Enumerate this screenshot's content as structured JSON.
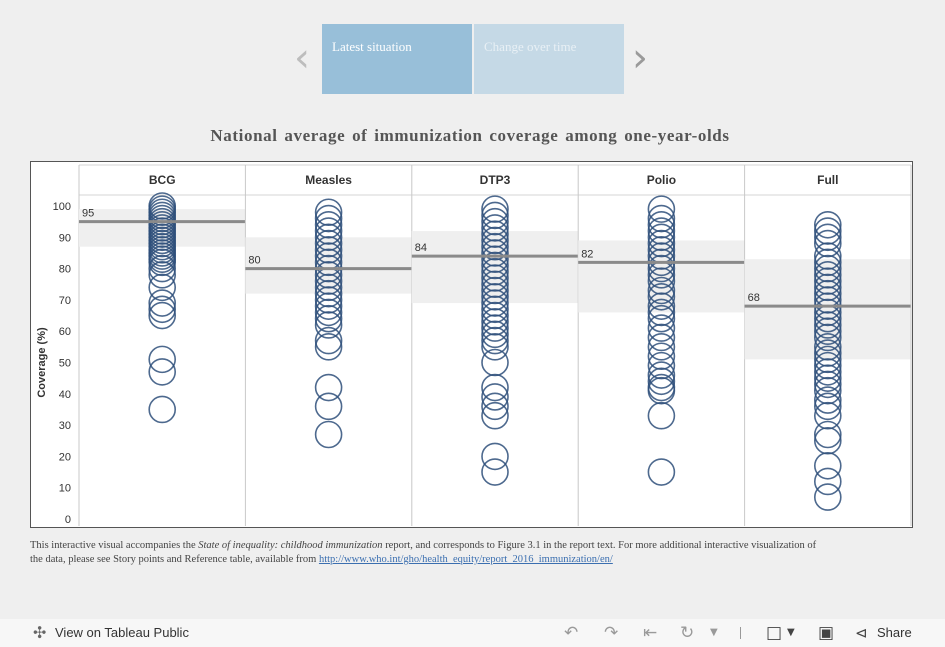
{
  "nav": {
    "prev_icon": "chevron-left-icon",
    "next_icon": "chevron-right-icon",
    "tabs": [
      {
        "label": "Latest situation",
        "active": true
      },
      {
        "label": "Change over time",
        "active": false
      }
    ]
  },
  "chart_data": {
    "type": "scatter",
    "title": "National average of immunization coverage among one-year-olds",
    "ylabel": "Coverage (%)",
    "ylim": [
      0,
      100
    ],
    "yticks": [
      0,
      10,
      20,
      30,
      40,
      50,
      60,
      70,
      80,
      90,
      100
    ],
    "grid": false,
    "mark_color": "#2e4f7a",
    "band_color": "#efefef",
    "reference_line_color": "#8a8a8a",
    "panels": [
      {
        "name": "BCG",
        "average": 95,
        "band": [
          87,
          99
        ],
        "values": [
          100,
          99,
          98,
          97,
          96,
          95,
          94,
          93,
          92,
          91,
          90,
          89,
          88,
          87,
          86,
          85,
          84,
          83,
          82,
          80,
          78,
          74,
          69,
          67,
          65,
          51,
          47,
          35
        ]
      },
      {
        "name": "Measles",
        "average": 80,
        "band": [
          72,
          90
        ],
        "values": [
          98,
          96,
          94,
          92,
          90,
          88,
          86,
          84,
          82,
          80,
          78,
          76,
          74,
          72,
          70,
          68,
          66,
          64,
          62,
          57,
          55,
          42,
          36,
          27
        ]
      },
      {
        "name": "DTP3",
        "average": 84,
        "band": [
          69,
          92
        ],
        "values": [
          99,
          97,
          95,
          93,
          91,
          89,
          87,
          85,
          83,
          81,
          79,
          77,
          75,
          73,
          71,
          69,
          67,
          65,
          63,
          61,
          59,
          57,
          55,
          50,
          42,
          39,
          36,
          33,
          20,
          15
        ]
      },
      {
        "name": "Polio",
        "average": 82,
        "band": [
          66,
          89
        ],
        "values": [
          99,
          96,
          94,
          92,
          90,
          88,
          86,
          84,
          82,
          80,
          78,
          76,
          73,
          71,
          68,
          66,
          64,
          61,
          58,
          55,
          52,
          49,
          46,
          44,
          42,
          41,
          33,
          15
        ]
      },
      {
        "name": "Full",
        "average": 68,
        "band": [
          51,
          83
        ],
        "values": [
          94,
          92,
          90,
          88,
          84,
          82,
          80,
          78,
          76,
          74,
          72,
          70,
          68,
          66,
          64,
          62,
          60,
          58,
          55,
          53,
          51,
          49,
          47,
          45,
          43,
          41,
          38,
          36,
          33,
          27,
          25,
          17,
          12,
          7
        ]
      }
    ]
  },
  "footnote": {
    "part1": "This interactive visual accompanies the ",
    "report_title": "State of inequality: childhood immunization",
    "part2": " report, and corresponds to Figure 3.1 in the report text. For more additional interactive visualization of the data, please see Story points and Reference table, available from ",
    "link": "http://www.who.int/gho/health_equity/report_2016_immunization/en/"
  },
  "toolbar": {
    "view_label": "View on Tableau Public",
    "view_icon": "tableau-logo-icon",
    "undo_icon": "undo-icon",
    "redo_icon": "redo-icon",
    "revert_icon": "revert-icon",
    "refresh_icon": "refresh-icon",
    "download_icon": "download-icon",
    "fullscreen_icon": "fullscreen-icon",
    "share_icon": "share-icon",
    "share_label": "Share"
  }
}
